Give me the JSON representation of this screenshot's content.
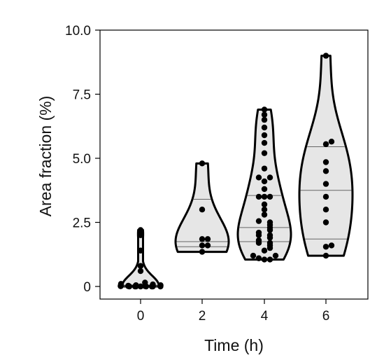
{
  "chart_data": {
    "type": "violin",
    "xlabel": "Time (h)",
    "ylabel": "Area fraction (%)",
    "ylim": [
      0,
      10
    ],
    "y_ticks": [
      "0",
      "2.5",
      "5.0",
      "7.5",
      "10.0"
    ],
    "categories": [
      "0",
      "2",
      "4",
      "6"
    ],
    "grid": false,
    "legend": "none",
    "colors": {
      "fill": "#e6e6e6",
      "stroke": "#000000",
      "points": "#000000",
      "quartile_lines": "#666666"
    },
    "groups": [
      {
        "x": "0",
        "points": [
          2.2,
          2.1,
          2.0,
          1.4,
          0.8,
          0.6,
          0.15,
          0.1,
          0.08,
          0.05,
          0.05,
          0.03,
          0.03,
          0.02,
          0.02,
          0.02,
          0.01,
          0.01,
          0.01,
          0.01,
          0.0,
          0.0,
          0.0,
          0.0,
          0.0,
          0.0,
          0.0,
          0.0
        ],
        "quartiles": [
          0.0,
          0.0,
          0.05
        ]
      },
      {
        "x": "2",
        "points": [
          4.8,
          3.0,
          1.85,
          1.85,
          1.6,
          1.6,
          1.35
        ],
        "quartiles": [
          1.55,
          1.75,
          3.4
        ]
      },
      {
        "x": "4",
        "points": [
          6.9,
          6.7,
          6.5,
          6.2,
          5.9,
          5.6,
          5.2,
          4.6,
          4.25,
          4.25,
          4.1,
          3.8,
          3.5,
          3.5,
          3.5,
          3.2,
          3.0,
          2.8,
          2.55,
          2.5,
          2.4,
          2.3,
          2.2,
          2.1,
          2.0,
          2.0,
          1.9,
          1.8,
          1.7,
          1.7,
          1.6,
          1.5,
          1.4,
          1.2,
          1.2,
          1.1,
          1.05,
          1.05
        ],
        "quartiles": [
          1.75,
          2.3,
          3.55
        ]
      },
      {
        "x": "6",
        "points": [
          9.0,
          5.65,
          5.55,
          4.85,
          4.5,
          4.0,
          3.5,
          3.0,
          2.5,
          1.6,
          1.55,
          1.2
        ],
        "quartiles": [
          1.85,
          3.75,
          5.45
        ]
      }
    ]
  }
}
